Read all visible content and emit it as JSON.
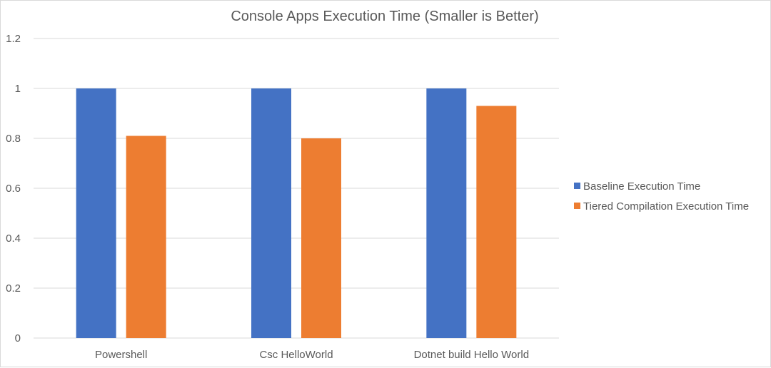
{
  "chart_data": {
    "type": "bar",
    "title": "Console Apps Execution Time (Smaller is Better)",
    "xlabel": "",
    "ylabel": "",
    "ylim": [
      0,
      1.2
    ],
    "yticks": [
      "0",
      "0.2",
      "0.4",
      "0.6",
      "0.8",
      "1",
      "1.2"
    ],
    "ytick_values": [
      0,
      0.2,
      0.4,
      0.6,
      0.8,
      1.0,
      1.2
    ],
    "grid": true,
    "legend_position": "right",
    "categories": [
      "Powershell",
      "Csc HelloWorld",
      "Dotnet build Hello World"
    ],
    "series": [
      {
        "name": "Baseline Execution Time",
        "color": "#4472c4",
        "values": [
          1.0,
          1.0,
          1.0
        ]
      },
      {
        "name": "Tiered Compilation Execution Time",
        "color": "#ed7d31",
        "values": [
          0.81,
          0.8,
          0.93
        ]
      }
    ]
  }
}
